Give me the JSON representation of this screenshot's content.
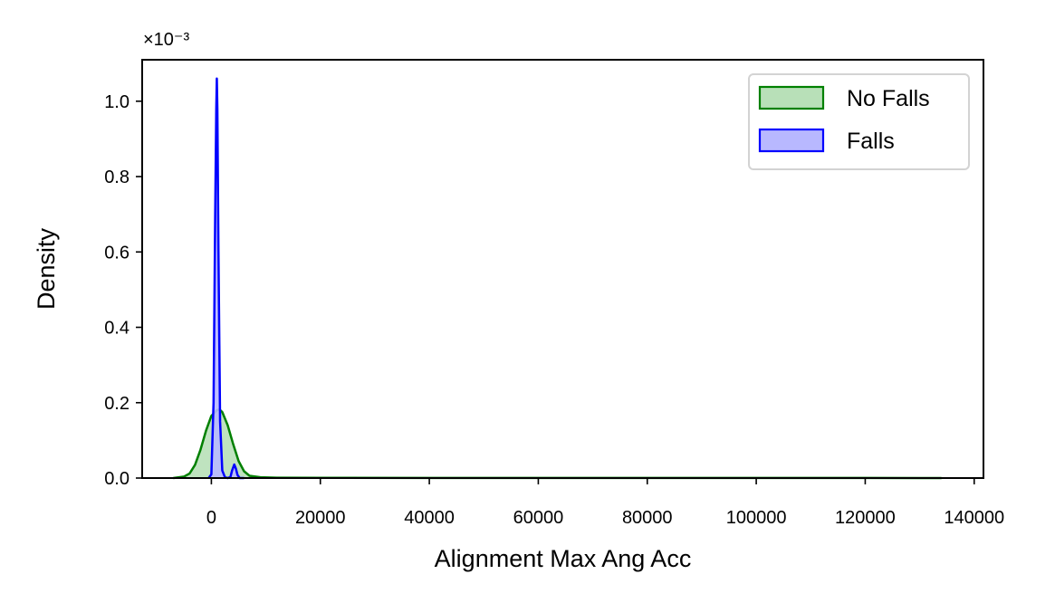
{
  "chart_data": {
    "type": "area",
    "xlabel": "Alignment Max Ang Acc",
    "ylabel": "Density",
    "y_offset_text": "×10⁻³",
    "x_ticks": [
      0,
      20000,
      40000,
      60000,
      80000,
      100000,
      120000,
      140000
    ],
    "x_tick_labels": [
      "0",
      "20000",
      "40000",
      "60000",
      "80000",
      "100000",
      "120000",
      "140000"
    ],
    "y_ticks": [
      0.0,
      0.2,
      0.4,
      0.6,
      0.8,
      1.0
    ],
    "y_tick_labels": [
      "0.0",
      "0.2",
      "0.4",
      "0.6",
      "0.8",
      "1.0"
    ],
    "xlim": [
      -12700,
      141700
    ],
    "ylim": [
      0,
      1.11
    ],
    "y_scale_factor": 0.001,
    "grid": false,
    "legend_position": "upper right",
    "series": [
      {
        "name": "No Falls",
        "color": "#008000",
        "fill": "#b8e0b8",
        "x": [
          -7000,
          -5000,
          -4000,
          -3000,
          -2000,
          -1000,
          0,
          1000,
          1500,
          2000,
          3000,
          4000,
          5000,
          6000,
          7000,
          9000,
          12000,
          20000,
          40000,
          60000,
          80000,
          100000,
          120000,
          134000
        ],
        "y": [
          0.0,
          0.004,
          0.012,
          0.035,
          0.075,
          0.125,
          0.165,
          0.18,
          0.182,
          0.175,
          0.14,
          0.09,
          0.045,
          0.018,
          0.006,
          0.002,
          0.001,
          0.0005,
          0.0003,
          0.0003,
          0.0003,
          0.0003,
          0.0003,
          0.0
        ]
      },
      {
        "name": "Falls",
        "color": "#0000ff",
        "fill": "#b8b8ff",
        "x": [
          -500,
          0,
          400,
          700,
          900,
          1000,
          1100,
          1300,
          1600,
          2000,
          2500,
          3000,
          3500,
          3800,
          4200,
          4500,
          4800,
          5200,
          6000
        ],
        "y": [
          0.0,
          0.01,
          0.2,
          0.7,
          0.98,
          1.06,
          0.98,
          0.6,
          0.15,
          0.02,
          0.002,
          0.0,
          0.003,
          0.02,
          0.036,
          0.025,
          0.008,
          0.0,
          0.0
        ]
      }
    ]
  }
}
